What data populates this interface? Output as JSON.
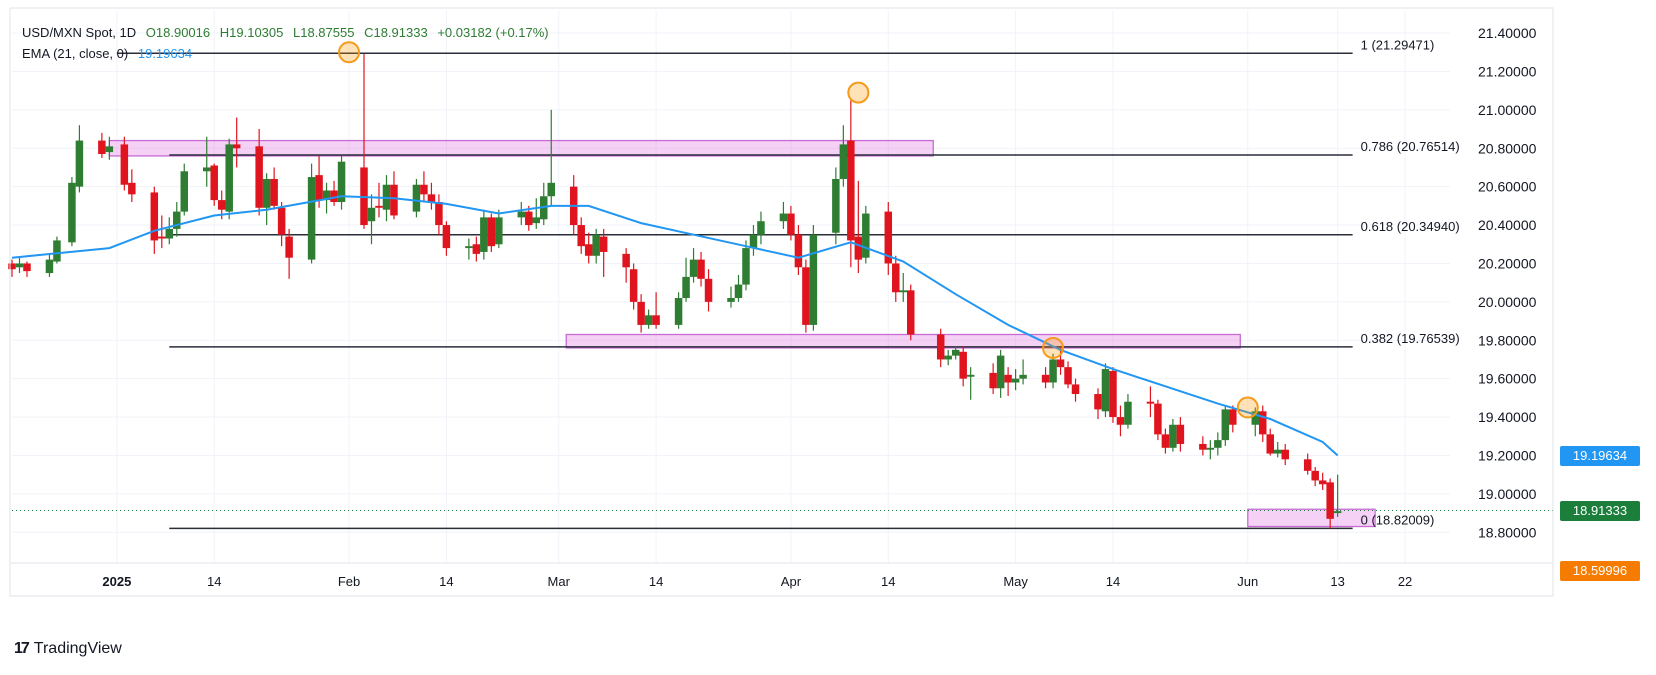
{
  "header": {
    "symbol": "USD/MXN Spot, 1D",
    "open": "O18.90016",
    "high": "H19.10305",
    "low": "L18.87555",
    "close": "C18.91333",
    "change": "+0.03182 (+0.17%)",
    "ema_label": "EMA (21, close, 0)",
    "ema_value": "19.19634"
  },
  "brand": {
    "name": "TradingView",
    "logo": "17"
  },
  "tags": {
    "ema": "19.19634",
    "last": "18.91333",
    "low": "18.59996"
  },
  "colors": {
    "up": "#2e7d32",
    "down": "#e0141e",
    "ema": "#2196f3",
    "zone": "#cc00cc",
    "tag_low": "#f57c00"
  },
  "chart_data": {
    "type": "candlestick",
    "title": "USD/MXN Spot, 1D",
    "y_ticks": [
      "18.80000",
      "19.00000",
      "19.20000",
      "19.40000",
      "19.60000",
      "19.80000",
      "20.00000",
      "20.20000",
      "20.40000",
      "20.60000",
      "20.80000",
      "21.00000",
      "21.20000",
      "21.40000"
    ],
    "ylim": [
      18.64,
      21.52
    ],
    "x_ticks": [
      "2025",
      "14",
      "Feb",
      "14",
      "Mar",
      "14",
      "Apr",
      "14",
      "May",
      "14",
      "Jun",
      "13",
      "22"
    ],
    "x_tick_dates": [
      "2025-01-01",
      "2025-01-14",
      "2025-02-01",
      "2025-02-14",
      "2025-03-01",
      "2025-03-14",
      "2025-04-01",
      "2025-04-14",
      "2025-05-01",
      "2025-05-14",
      "2025-06-01",
      "2025-06-13",
      "2025-06-22"
    ],
    "xlim": [
      "2024-12-18",
      "2025-06-28"
    ],
    "fib_levels": [
      {
        "label": "1 (21.29471)",
        "value": 21.29471,
        "from": "2025-01-01",
        "to": "2025-06-15"
      },
      {
        "label": "0.786 (20.76514)",
        "value": 20.76514,
        "from": "2025-01-08",
        "to": "2025-06-15"
      },
      {
        "label": "0.618 (20.34940)",
        "value": 20.3494,
        "from": "2025-01-08",
        "to": "2025-06-15"
      },
      {
        "label": "0.382 (19.76539)",
        "value": 19.76539,
        "from": "2025-01-08",
        "to": "2025-06-15"
      },
      {
        "label": "0 (18.82009)",
        "value": 18.82009,
        "from": "2025-01-08",
        "to": "2025-06-15"
      }
    ],
    "zones": [
      {
        "from": "2024-12-31",
        "to": "2025-04-20",
        "low": 20.76,
        "high": 20.84
      },
      {
        "from": "2025-03-02",
        "to": "2025-05-31",
        "low": 19.76,
        "high": 19.83
      },
      {
        "from": "2025-06-01",
        "to": "2025-06-18",
        "low": 18.83,
        "high": 18.92
      }
    ],
    "markers": [
      {
        "date": "2025-02-01",
        "price": 21.3
      },
      {
        "date": "2025-04-10",
        "price": 21.09
      },
      {
        "date": "2025-05-06",
        "price": 19.76
      },
      {
        "date": "2025-06-01",
        "price": 19.45
      }
    ],
    "last_price": 18.91333,
    "ema": [
      [
        "2024-12-18",
        20.23
      ],
      [
        "2024-12-31",
        20.28
      ],
      [
        "2025-01-06",
        20.37
      ],
      [
        "2025-01-14",
        20.45
      ],
      [
        "2025-01-21",
        20.48
      ],
      [
        "2025-01-31",
        20.55
      ],
      [
        "2025-02-07",
        20.54
      ],
      [
        "2025-02-14",
        20.51
      ],
      [
        "2025-02-21",
        20.46
      ],
      [
        "2025-02-28",
        20.5
      ],
      [
        "2025-03-05",
        20.5
      ],
      [
        "2025-03-12",
        20.41
      ],
      [
        "2025-03-19",
        20.35
      ],
      [
        "2025-03-26",
        20.29
      ],
      [
        "2025-04-02",
        20.23
      ],
      [
        "2025-04-09",
        20.31
      ],
      [
        "2025-04-16",
        20.21
      ],
      [
        "2025-04-23",
        20.04
      ],
      [
        "2025-04-30",
        19.88
      ],
      [
        "2025-05-07",
        19.75
      ],
      [
        "2025-05-14",
        19.65
      ],
      [
        "2025-05-21",
        19.56
      ],
      [
        "2025-05-28",
        19.47
      ],
      [
        "2025-06-04",
        19.39
      ],
      [
        "2025-06-11",
        19.27
      ],
      [
        "2025-06-13",
        19.2
      ]
    ],
    "candles": [
      [
        "2024-12-18",
        20.2,
        20.17,
        20.22,
        20.13
      ],
      [
        "2024-12-19",
        20.18,
        20.2,
        20.23,
        20.15
      ],
      [
        "2024-12-20",
        20.2,
        20.16,
        20.21,
        20.13
      ],
      [
        "2024-12-23",
        20.15,
        20.22,
        20.25,
        20.13
      ],
      [
        "2024-12-24",
        20.21,
        20.32,
        20.34,
        20.2
      ],
      [
        "2024-12-26",
        20.31,
        20.62,
        20.65,
        20.29
      ],
      [
        "2024-12-27",
        20.6,
        20.84,
        20.92,
        20.57
      ],
      [
        "2024-12-30",
        20.84,
        20.77,
        20.88,
        20.75
      ],
      [
        "2024-12-31",
        20.78,
        20.81,
        20.86,
        20.74
      ],
      [
        "2025-01-02",
        20.82,
        20.61,
        20.86,
        20.58
      ],
      [
        "2025-01-03",
        20.62,
        20.56,
        20.69,
        20.52
      ],
      [
        "2025-01-06",
        20.57,
        20.32,
        20.6,
        20.25
      ],
      [
        "2025-01-07",
        20.34,
        20.33,
        20.45,
        20.28
      ],
      [
        "2025-01-08",
        20.33,
        20.38,
        20.44,
        20.3
      ],
      [
        "2025-01-09",
        20.38,
        20.47,
        20.52,
        20.34
      ],
      [
        "2025-01-10",
        20.47,
        20.68,
        20.72,
        20.45
      ],
      [
        "2025-01-13",
        20.68,
        20.7,
        20.86,
        20.6
      ],
      [
        "2025-01-14",
        20.71,
        20.53,
        20.72,
        20.5
      ],
      [
        "2025-01-15",
        20.53,
        20.48,
        20.58,
        20.43
      ],
      [
        "2025-01-16",
        20.47,
        20.82,
        20.85,
        20.43
      ],
      [
        "2025-01-17",
        20.82,
        20.8,
        20.96,
        20.7
      ],
      [
        "2025-01-20",
        20.81,
        20.49,
        20.9,
        20.45
      ],
      [
        "2025-01-21",
        20.49,
        20.64,
        20.67,
        20.4
      ],
      [
        "2025-01-22",
        20.64,
        20.5,
        20.7,
        20.48
      ],
      [
        "2025-01-23",
        20.49,
        20.35,
        20.52,
        20.29
      ],
      [
        "2025-01-24",
        20.34,
        20.23,
        20.38,
        20.12
      ],
      [
        "2025-01-27",
        20.22,
        20.65,
        20.72,
        20.2
      ],
      [
        "2025-01-28",
        20.66,
        20.53,
        20.76,
        20.49
      ],
      [
        "2025-01-29",
        20.53,
        20.58,
        20.62,
        20.46
      ],
      [
        "2025-01-30",
        20.58,
        20.52,
        20.63,
        20.5
      ],
      [
        "2025-01-31",
        20.52,
        20.73,
        20.76,
        20.48
      ],
      [
        "2025-02-03",
        20.7,
        20.4,
        21.29,
        20.38
      ],
      [
        "2025-02-04",
        20.42,
        20.49,
        20.56,
        20.3
      ],
      [
        "2025-02-05",
        20.5,
        20.49,
        20.62,
        20.44
      ],
      [
        "2025-02-06",
        20.48,
        20.61,
        20.66,
        20.42
      ],
      [
        "2025-02-07",
        20.61,
        20.45,
        20.68,
        20.43
      ],
      [
        "2025-02-10",
        20.47,
        20.61,
        20.64,
        20.44
      ],
      [
        "2025-02-11",
        20.61,
        20.56,
        20.68,
        20.52
      ],
      [
        "2025-02-12",
        20.56,
        20.52,
        20.62,
        20.48
      ],
      [
        "2025-02-13",
        20.52,
        20.4,
        20.56,
        20.35
      ],
      [
        "2025-02-14",
        20.4,
        20.28,
        20.42,
        20.24
      ],
      [
        "2025-02-17",
        20.28,
        20.29,
        20.33,
        20.22
      ],
      [
        "2025-02-18",
        20.3,
        20.25,
        20.34,
        20.21
      ],
      [
        "2025-02-19",
        20.26,
        20.44,
        20.48,
        20.22
      ],
      [
        "2025-02-20",
        20.44,
        20.29,
        20.46,
        20.26
      ],
      [
        "2025-02-21",
        20.3,
        20.44,
        20.48,
        20.28
      ],
      [
        "2025-02-24",
        20.44,
        20.47,
        20.52,
        20.4
      ],
      [
        "2025-02-25",
        20.47,
        20.4,
        20.5,
        20.37
      ],
      [
        "2025-02-26",
        20.41,
        20.44,
        20.54,
        20.38
      ],
      [
        "2025-02-27",
        20.43,
        20.55,
        20.62,
        20.4
      ],
      [
        "2025-02-28",
        20.55,
        20.62,
        21.0,
        20.5
      ],
      [
        "2025-03-03",
        20.6,
        20.4,
        20.66,
        20.35
      ],
      [
        "2025-03-04",
        20.4,
        20.29,
        20.44,
        20.25
      ],
      [
        "2025-03-05",
        20.3,
        20.24,
        20.36,
        20.2
      ],
      [
        "2025-03-06",
        20.24,
        20.35,
        20.38,
        20.2
      ],
      [
        "2025-03-07",
        20.34,
        20.26,
        20.38,
        20.13
      ],
      [
        "2025-03-10",
        20.25,
        20.18,
        20.28,
        20.1
      ],
      [
        "2025-03-11",
        20.17,
        20.0,
        20.2,
        19.96
      ],
      [
        "2025-03-12",
        20.0,
        19.88,
        20.04,
        19.84
      ],
      [
        "2025-03-13",
        19.88,
        19.93,
        19.96,
        19.86
      ],
      [
        "2025-03-14",
        19.93,
        19.88,
        20.05,
        19.86
      ],
      [
        "2025-03-17",
        19.88,
        20.02,
        20.05,
        19.86
      ],
      [
        "2025-03-18",
        20.02,
        20.13,
        20.23,
        20.0
      ],
      [
        "2025-03-19",
        20.13,
        20.22,
        20.28,
        20.1
      ],
      [
        "2025-03-20",
        20.22,
        20.12,
        20.26,
        20.08
      ],
      [
        "2025-03-21",
        20.12,
        20.0,
        20.17,
        19.95
      ],
      [
        "2025-03-24",
        20.0,
        20.02,
        20.08,
        19.97
      ],
      [
        "2025-03-25",
        20.02,
        20.09,
        20.14,
        20.0
      ],
      [
        "2025-03-26",
        20.09,
        20.28,
        20.32,
        20.06
      ],
      [
        "2025-03-27",
        20.28,
        20.35,
        20.4,
        20.24
      ],
      [
        "2025-03-28",
        20.35,
        20.42,
        20.47,
        20.3
      ],
      [
        "2025-03-31",
        20.42,
        20.46,
        20.52,
        20.38
      ],
      [
        "2025-04-01",
        20.46,
        20.35,
        20.5,
        20.32
      ],
      [
        "2025-04-02",
        20.35,
        20.18,
        20.4,
        20.14
      ],
      [
        "2025-04-03",
        20.18,
        19.88,
        20.22,
        19.84
      ],
      [
        "2025-04-04",
        19.88,
        20.35,
        20.4,
        19.85
      ],
      [
        "2025-04-07",
        20.36,
        20.64,
        20.7,
        20.3
      ],
      [
        "2025-04-08",
        20.64,
        20.82,
        20.92,
        20.6
      ],
      [
        "2025-04-09",
        20.84,
        20.32,
        21.05,
        20.18
      ],
      [
        "2025-04-10",
        20.34,
        20.22,
        20.63,
        20.15
      ],
      [
        "2025-04-11",
        20.23,
        20.46,
        20.5,
        20.2
      ],
      [
        "2025-04-14",
        20.47,
        20.2,
        20.52,
        20.14
      ],
      [
        "2025-04-15",
        20.2,
        20.05,
        20.24,
        20.0
      ],
      [
        "2025-04-16",
        20.05,
        20.06,
        20.15,
        20.0
      ],
      [
        "2025-04-17",
        20.06,
        19.83,
        20.09,
        19.8
      ],
      [
        "2025-04-21",
        19.83,
        19.7,
        19.86,
        19.66
      ],
      [
        "2025-04-22",
        19.7,
        19.72,
        19.75,
        19.67
      ],
      [
        "2025-04-23",
        19.72,
        19.75,
        19.77,
        19.7
      ],
      [
        "2025-04-24",
        19.74,
        19.6,
        19.77,
        19.56
      ],
      [
        "2025-04-25",
        19.61,
        19.62,
        19.66,
        19.49
      ],
      [
        "2025-04-28",
        19.63,
        19.55,
        19.68,
        19.52
      ],
      [
        "2025-04-29",
        19.55,
        19.72,
        19.75,
        19.5
      ],
      [
        "2025-04-30",
        19.62,
        19.58,
        19.66,
        19.51
      ],
      [
        "2025-05-01",
        19.58,
        19.6,
        19.65,
        19.54
      ],
      [
        "2025-05-02",
        19.6,
        19.62,
        19.7,
        19.57
      ],
      [
        "2025-05-05",
        19.62,
        19.58,
        19.66,
        19.55
      ],
      [
        "2025-05-06",
        19.58,
        19.7,
        19.73,
        19.55
      ],
      [
        "2025-05-07",
        19.7,
        19.66,
        19.76,
        19.62
      ],
      [
        "2025-05-08",
        19.66,
        19.57,
        19.69,
        19.55
      ],
      [
        "2025-05-09",
        19.57,
        19.52,
        19.6,
        19.48
      ],
      [
        "2025-05-12",
        19.52,
        19.44,
        19.55,
        19.39
      ],
      [
        "2025-05-13",
        19.43,
        19.65,
        19.68,
        19.4
      ],
      [
        "2025-05-14",
        19.64,
        19.4,
        19.66,
        19.37
      ],
      [
        "2025-05-15",
        19.4,
        19.36,
        19.46,
        19.3
      ],
      [
        "2025-05-16",
        19.36,
        19.48,
        19.52,
        19.34
      ],
      [
        "2025-05-19",
        19.48,
        19.47,
        19.56,
        19.4
      ],
      [
        "2025-05-20",
        19.47,
        19.31,
        19.49,
        19.28
      ],
      [
        "2025-05-21",
        19.31,
        19.24,
        19.34,
        19.21
      ],
      [
        "2025-05-22",
        19.24,
        19.36,
        19.39,
        19.22
      ],
      [
        "2025-05-23",
        19.36,
        19.26,
        19.4,
        19.22
      ],
      [
        "2025-05-26",
        19.26,
        19.23,
        19.3,
        19.2
      ],
      [
        "2025-05-27",
        19.23,
        19.24,
        19.28,
        19.18
      ],
      [
        "2025-05-28",
        19.24,
        19.28,
        19.32,
        19.2
      ],
      [
        "2025-05-29",
        19.28,
        19.44,
        19.46,
        19.25
      ],
      [
        "2025-05-30",
        19.44,
        19.36,
        19.46,
        19.32
      ],
      [
        "2025-06-02",
        19.36,
        19.43,
        19.45,
        19.3
      ],
      [
        "2025-06-03",
        19.43,
        19.31,
        19.46,
        19.27
      ],
      [
        "2025-06-04",
        19.31,
        19.21,
        19.34,
        19.2
      ],
      [
        "2025-06-05",
        19.21,
        19.23,
        19.27,
        19.19
      ],
      [
        "2025-06-06",
        19.23,
        19.18,
        19.26,
        19.15
      ],
      [
        "2025-06-09",
        19.18,
        19.12,
        19.21,
        19.1
      ],
      [
        "2025-06-10",
        19.12,
        19.07,
        19.14,
        19.04
      ],
      [
        "2025-06-11",
        19.07,
        19.05,
        19.11,
        19.02
      ],
      [
        "2025-06-12",
        19.06,
        18.87,
        19.08,
        18.82
      ],
      [
        "2025-06-13",
        18.9,
        18.91,
        19.1,
        18.88
      ]
    ]
  }
}
